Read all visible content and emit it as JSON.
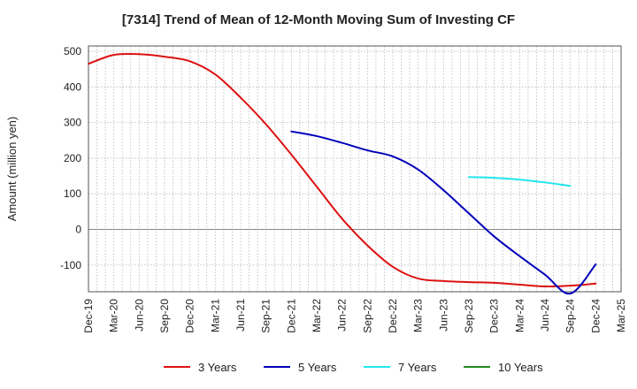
{
  "chart_data": {
    "type": "line",
    "title": "[7314]  Trend of Mean of 12-Month Moving Sum of Investing CF",
    "xlabel": "",
    "ylabel": "Amount (million yen)",
    "ylim": [
      -175,
      515
    ],
    "yticks": [
      500,
      400,
      300,
      200,
      100,
      0,
      -100
    ],
    "ytick_labels": [
      "500",
      "400",
      "300",
      "200",
      "100",
      "0",
      "-100"
    ],
    "categories": [
      "Dec-19",
      "Mar-20",
      "Jun-20",
      "Sep-20",
      "Dec-20",
      "Mar-21",
      "Jun-21",
      "Sep-21",
      "Dec-21",
      "Mar-22",
      "Jun-22",
      "Sep-22",
      "Dec-22",
      "Mar-23",
      "Jun-23",
      "Sep-23",
      "Dec-23",
      "Mar-24",
      "Jun-24",
      "Sep-24",
      "Dec-24",
      "Mar-25"
    ],
    "grid": true,
    "legend_position": "bottom",
    "series": [
      {
        "name": "3 Years",
        "color": "#dd1111",
        "values": [
          465,
          490,
          492,
          485,
          472,
          435,
          370,
          295,
          210,
          120,
          30,
          -45,
          -105,
          -138,
          -145,
          -148,
          -150,
          -155,
          -160,
          -158,
          -152,
          null
        ]
      },
      {
        "name": "5 Years",
        "color": "#0000bb",
        "values": [
          null,
          null,
          null,
          null,
          null,
          null,
          null,
          null,
          275,
          262,
          243,
          222,
          205,
          168,
          110,
          45,
          -20,
          -75,
          -127,
          -180,
          -98,
          null
        ]
      },
      {
        "name": "7 Years",
        "color": "#22e5f0",
        "values": [
          null,
          null,
          null,
          null,
          null,
          null,
          null,
          null,
          null,
          null,
          null,
          null,
          null,
          null,
          null,
          147,
          145,
          140,
          132,
          122,
          null,
          null
        ]
      },
      {
        "name": "10 Years",
        "color": "#228b22",
        "values": [
          null,
          null,
          null,
          null,
          null,
          null,
          null,
          null,
          null,
          null,
          null,
          null,
          null,
          null,
          null,
          null,
          null,
          null,
          null,
          null,
          null,
          null
        ]
      }
    ]
  }
}
